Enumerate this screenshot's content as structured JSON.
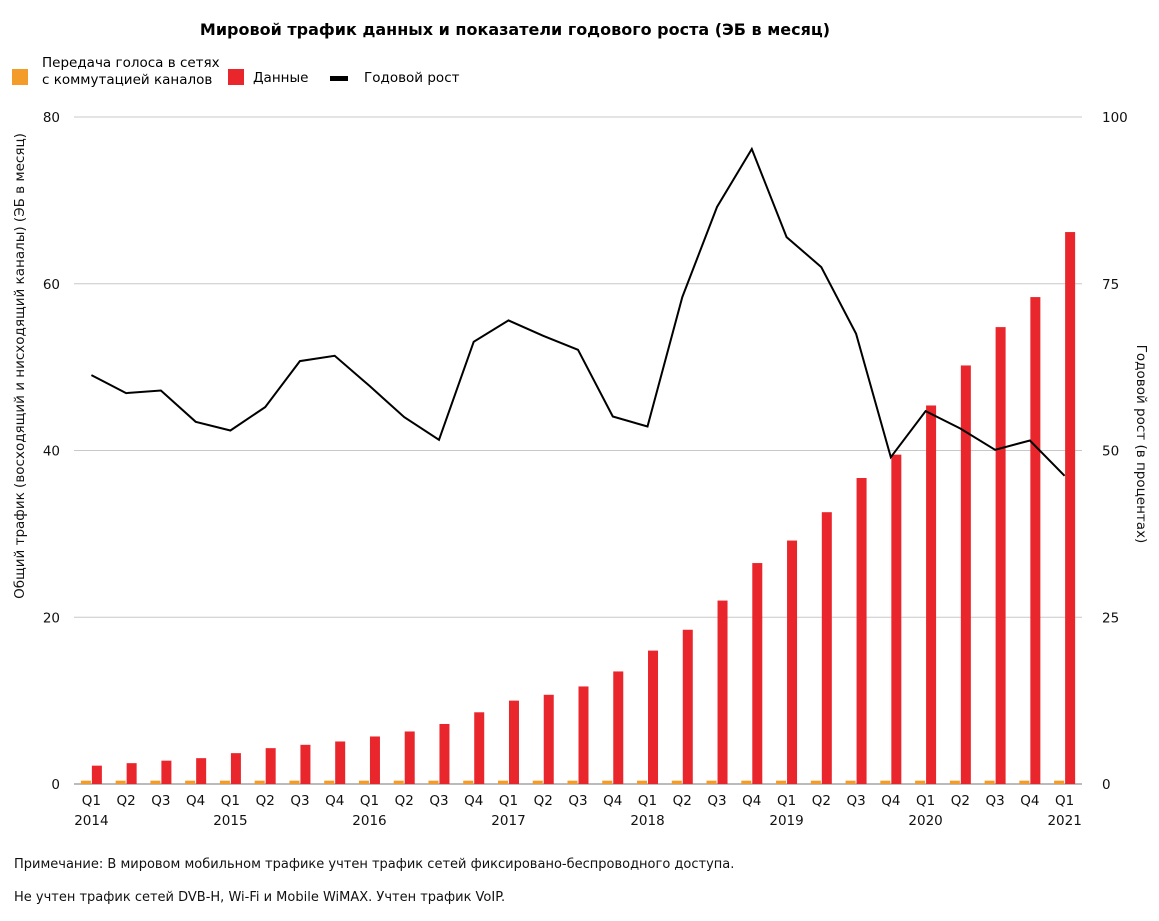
{
  "chart_data": {
    "type": "bar",
    "title": "Мировой трафик данных и показатели годового роста (ЭБ в месяц)",
    "legend": [
      {
        "name_lines": [
          "Передача голоса в сетях",
          "с коммутацией каналов"
        ],
        "color": "#f39c2a",
        "marker": "square"
      },
      {
        "name_lines": [
          "Данные"
        ],
        "color": "#e8262b",
        "marker": "square"
      },
      {
        "name_lines": [
          "Годовой рост"
        ],
        "color": "#000000",
        "marker": "line"
      }
    ],
    "ylabel": "Общий трафик (восходящий и нисходящий каналы) (ЭБ в месяц)",
    "y2label": "Годовой рост (в процентах)",
    "ylim": [
      0,
      80
    ],
    "y2lim": [
      0,
      100
    ],
    "yticks": [
      "0",
      "20",
      "40",
      "60",
      "80"
    ],
    "y2ticks": [
      "0",
      "25",
      "50",
      "75",
      "100"
    ],
    "grid": true,
    "categories": [
      "Q1",
      "Q2",
      "Q3",
      "Q4",
      "Q1",
      "Q2",
      "Q3",
      "Q4",
      "Q1",
      "Q2",
      "Q3",
      "Q4",
      "Q1",
      "Q2",
      "Q3",
      "Q4",
      "Q1",
      "Q2",
      "Q3",
      "Q4",
      "Q1",
      "Q2",
      "Q3",
      "Q4",
      "Q1",
      "Q2",
      "Q3",
      "Q4",
      "Q1"
    ],
    "years": [
      {
        "label": "2014",
        "index": 0
      },
      {
        "label": "2015",
        "index": 4
      },
      {
        "label": "2016",
        "index": 8
      },
      {
        "label": "2017",
        "index": 12
      },
      {
        "label": "2018",
        "index": 16
      },
      {
        "label": "2019",
        "index": 20
      },
      {
        "label": "2020",
        "index": 24
      },
      {
        "label": "2021",
        "index": 28
      }
    ],
    "series": [
      {
        "name": "Передача голоса в сетях с коммутацией каналов",
        "axis": "left",
        "color": "#f39c2a",
        "values": [
          0.4,
          0.4,
          0.4,
          0.4,
          0.4,
          0.4,
          0.4,
          0.4,
          0.4,
          0.4,
          0.4,
          0.4,
          0.4,
          0.4,
          0.4,
          0.4,
          0.4,
          0.4,
          0.4,
          0.4,
          0.4,
          0.4,
          0.4,
          0.4,
          0.4,
          0.4,
          0.4,
          0.4,
          0.4
        ]
      },
      {
        "name": "Данные",
        "axis": "left",
        "color": "#e8262b",
        "values": [
          2.2,
          2.5,
          2.8,
          3.1,
          3.7,
          4.3,
          4.7,
          5.1,
          5.7,
          6.3,
          7.2,
          8.6,
          10,
          10.7,
          11.7,
          13.5,
          16,
          18.5,
          22,
          26.5,
          29.2,
          32.6,
          36.7,
          39.5,
          45.4,
          50.2,
          54.8,
          58.4,
          66.2
        ]
      },
      {
        "name": "Годовой рост",
        "axis": "right",
        "color": "#000000",
        "values": [
          61.3,
          58.6,
          59,
          54.3,
          53,
          56.5,
          63.4,
          64.2,
          59.7,
          55,
          51.6,
          66.3,
          69.5,
          67.2,
          65.1,
          55.1,
          53.6,
          73,
          86.5,
          95.2,
          82,
          77.5,
          67.5,
          49,
          55.9,
          53.3,
          50.1,
          51.5,
          46.2
        ]
      }
    ]
  },
  "notes": [
    "Примечание: В мировом мобильном трафике учтен трафик сетей фиксировано-беспроводного  доступа.",
    "Не учтен трафик сетей DVB-H, Wi-Fi и Mobile WiMAX. Учтен трафик VoIP."
  ]
}
